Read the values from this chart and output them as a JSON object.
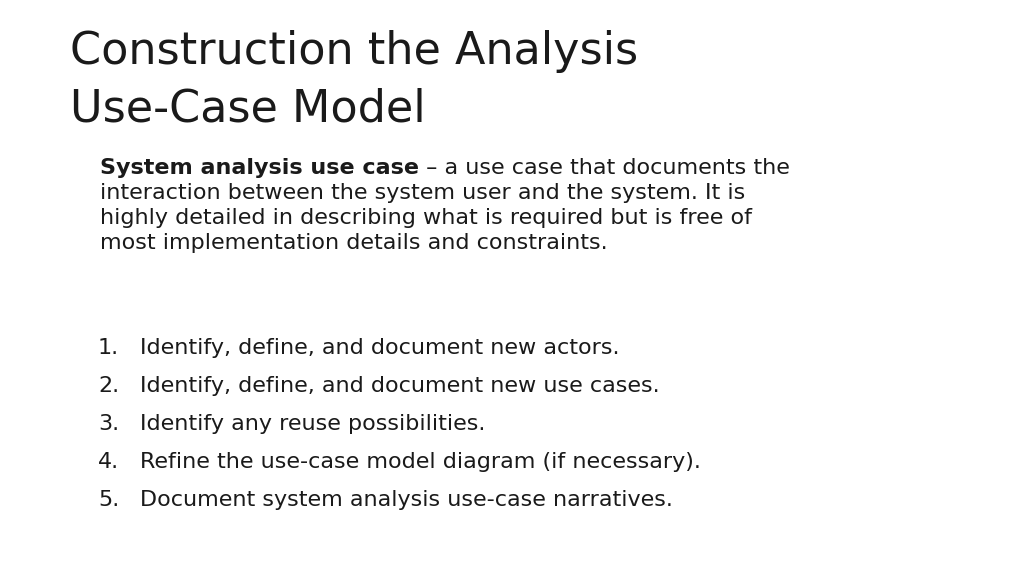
{
  "background_color": "#ffffff",
  "title_line1": "Construction the Analysis",
  "title_line2": "Use-Case Model",
  "title_fontsize": 32,
  "title_font_color": "#1a1a1a",
  "definition_bold": "System analysis use case",
  "definition_rest": " – a use case that documents the",
  "definition_line2": "interaction between the system user and the system. It is",
  "definition_line3": "highly detailed in describing what is required but is free of",
  "definition_line4": "most implementation details and constraints.",
  "definition_fontsize": 16,
  "list_items": [
    "Identify, define, and document new actors.",
    "Identify, define, and document new use cases.",
    "Identify any reuse possibilities.",
    "Refine the use-case model diagram (if necessary).",
    "Document system analysis use-case narratives."
  ],
  "list_fontsize": 16,
  "text_color": "#1a1a1a"
}
